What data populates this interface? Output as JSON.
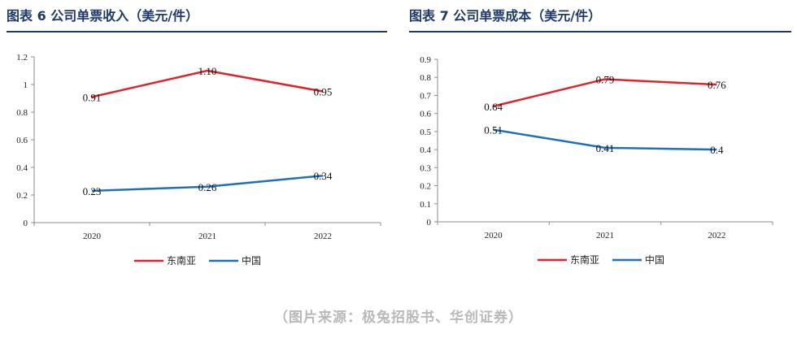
{
  "source_note": "（图片来源：极兔招股书、华创证券）",
  "chart_data": [
    {
      "type": "line",
      "title": "图表 6  公司单票收入（美元/件）",
      "categories": [
        "2020",
        "2021",
        "2022"
      ],
      "ylim": [
        0,
        1.2
      ],
      "yticks": [
        "0",
        "0.2",
        "0.4",
        "0.6",
        "0.8",
        "1",
        "1.2"
      ],
      "ytick_values": [
        0,
        0.2,
        0.4,
        0.6,
        0.8,
        1.0,
        1.2
      ],
      "legend_position": "bottom",
      "series": [
        {
          "name": "东南亚",
          "color": "#e0232b",
          "values": [
            0.91,
            1.1,
            0.95
          ],
          "labels": [
            "0.91",
            "1.10",
            "0.95"
          ]
        },
        {
          "name": "中国",
          "color": "#1f6fb9",
          "values": [
            0.23,
            0.26,
            0.34
          ],
          "labels": [
            "0.23",
            "0.26",
            "0.34"
          ]
        }
      ]
    },
    {
      "type": "line",
      "title": "图表 7  公司单票成本（美元/件）",
      "categories": [
        "2020",
        "2021",
        "2022"
      ],
      "ylim": [
        0,
        0.9
      ],
      "yticks": [
        "0",
        "0.1",
        "0.2",
        "0.3",
        "0.4",
        "0.5",
        "0.6",
        "0.7",
        "0.8",
        "0.9"
      ],
      "ytick_values": [
        0,
        0.1,
        0.2,
        0.3,
        0.4,
        0.5,
        0.6,
        0.7,
        0.8,
        0.9
      ],
      "legend_position": "bottom",
      "series": [
        {
          "name": "东南亚",
          "color": "#e0232b",
          "values": [
            0.64,
            0.79,
            0.76
          ],
          "labels": [
            "0.64",
            "0.79",
            "0.76"
          ]
        },
        {
          "name": "中国",
          "color": "#1f6fb9",
          "values": [
            0.51,
            0.41,
            0.4
          ],
          "labels": [
            "0.51",
            "0.41",
            "0.4"
          ]
        }
      ]
    }
  ]
}
